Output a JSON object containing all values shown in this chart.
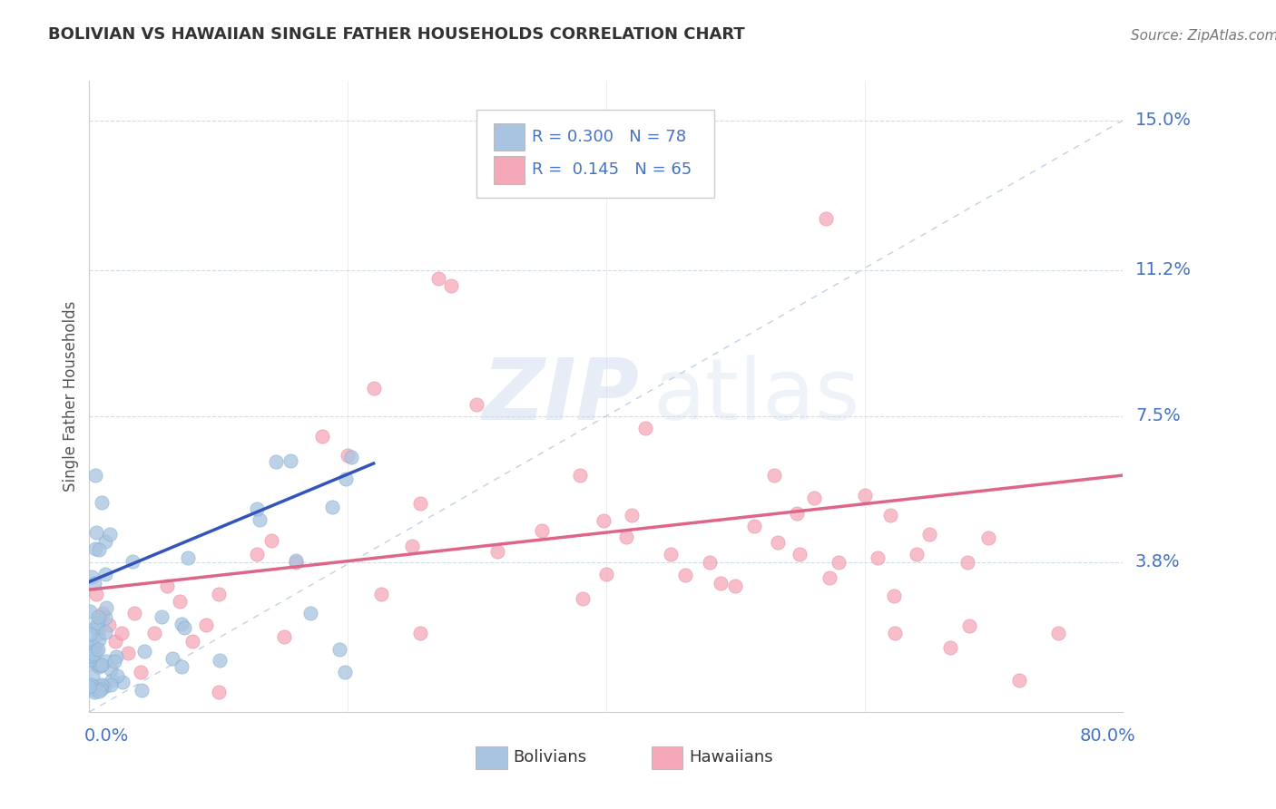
{
  "title": "BOLIVIAN VS HAWAIIAN SINGLE FATHER HOUSEHOLDS CORRELATION CHART",
  "source": "Source: ZipAtlas.com",
  "ylabel": "Single Father Households",
  "ytick_labels": [
    "3.8%",
    "7.5%",
    "11.2%",
    "15.0%"
  ],
  "ytick_values": [
    0.038,
    0.075,
    0.112,
    0.15
  ],
  "xlim": [
    0.0,
    0.8
  ],
  "ylim": [
    0.0,
    0.16
  ],
  "bolivian_color": "#a8c4e0",
  "hawaiian_color": "#f5a8b8",
  "bolivian_edge": "#7aadd0",
  "hawaiian_edge": "#e888a8",
  "trend_bolivian_color": "#3355bb",
  "trend_hawaiian_color": "#dd6688",
  "diagonal_color": "#b8cce0",
  "legend_R_bolivian": "0.300",
  "legend_N_bolivian": "78",
  "legend_R_hawaiian": "0.145",
  "legend_N_hawaiian": "65",
  "watermark_ZIP": "ZIP",
  "watermark_atlas": "atlas",
  "background_color": "#ffffff",
  "grid_color": "#d0dce8",
  "title_color": "#333333",
  "source_color": "#777777",
  "axis_label_color": "#4472c4",
  "ylabel_color": "#555555"
}
